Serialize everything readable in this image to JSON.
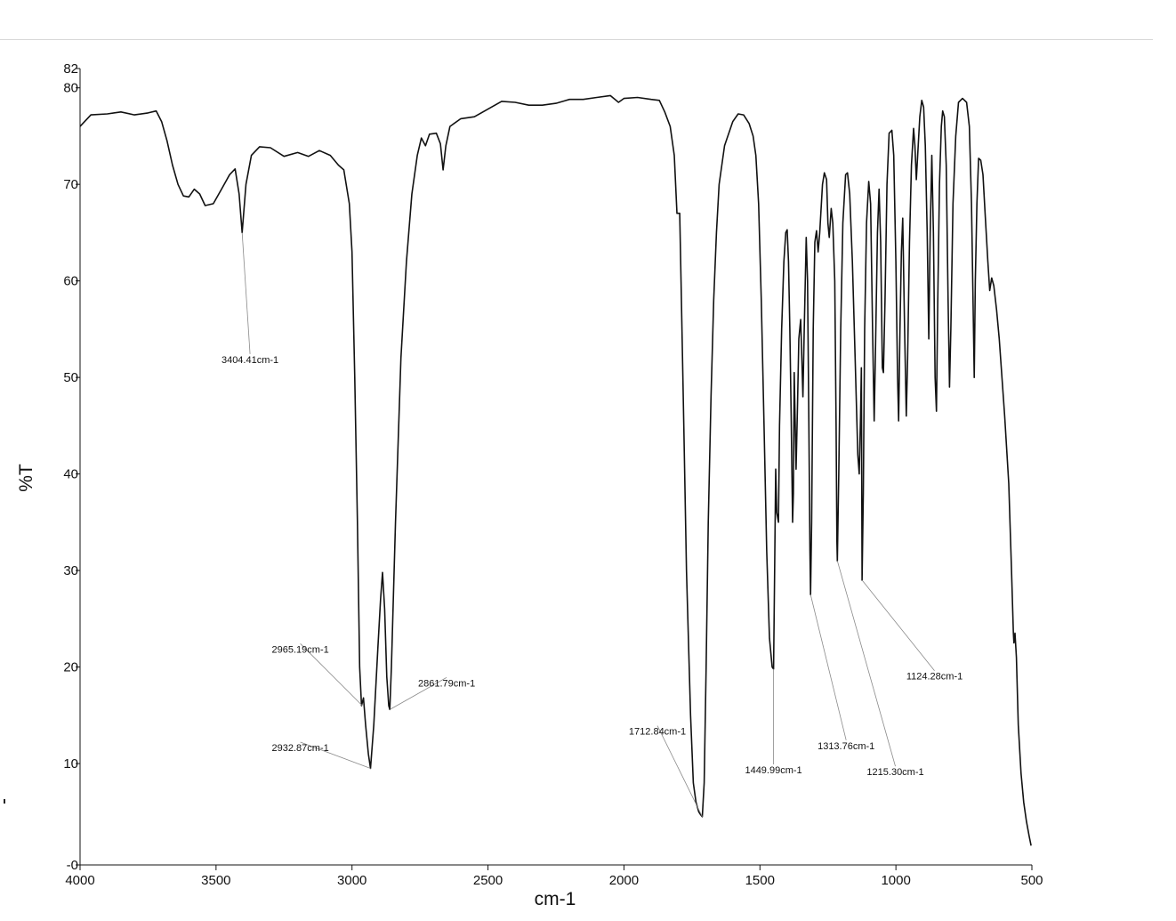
{
  "chart_data": {
    "type": "line",
    "title": "",
    "xlabel": "cm-1",
    "ylabel": "%T",
    "xlim": [
      4000,
      500
    ],
    "ylim": [
      -0.5,
      82
    ],
    "x_reversed": true,
    "grid": false,
    "x_ticks": [
      {
        "value": 4000,
        "label": "4000"
      },
      {
        "value": 3500,
        "label": "3500"
      },
      {
        "value": 3000,
        "label": "3000"
      },
      {
        "value": 2500,
        "label": "2500"
      },
      {
        "value": 2000,
        "label": "2000"
      },
      {
        "value": 1500,
        "label": "1500"
      },
      {
        "value": 1000,
        "label": "1000"
      },
      {
        "value": 500,
        "label": "500"
      }
    ],
    "y_ticks": [
      {
        "value": -0.5,
        "label": "-0"
      },
      {
        "value": 10,
        "label": "10"
      },
      {
        "value": 20,
        "label": "20"
      },
      {
        "value": 30,
        "label": "30"
      },
      {
        "value": 40,
        "label": "40"
      },
      {
        "value": 50,
        "label": "50"
      },
      {
        "value": 60,
        "label": "60"
      },
      {
        "value": 70,
        "label": "70"
      },
      {
        "value": 80,
        "label": "80"
      },
      {
        "value": 82,
        "label": "82"
      }
    ],
    "series": [
      {
        "color": "#111111",
        "points": [
          [
            4000,
            76
          ],
          [
            3960,
            77.2
          ],
          [
            3900,
            77.3
          ],
          [
            3850,
            77.5
          ],
          [
            3800,
            77.2
          ],
          [
            3750,
            77.4
          ],
          [
            3720,
            77.6
          ],
          [
            3700,
            76.5
          ],
          [
            3680,
            74.5
          ],
          [
            3660,
            72
          ],
          [
            3640,
            70
          ],
          [
            3620,
            68.8
          ],
          [
            3600,
            68.7
          ],
          [
            3580,
            69.5
          ],
          [
            3560,
            69
          ],
          [
            3540,
            67.8
          ],
          [
            3510,
            68
          ],
          [
            3480,
            69.5
          ],
          [
            3450,
            71
          ],
          [
            3430,
            71.6
          ],
          [
            3415,
            69
          ],
          [
            3404,
            65
          ],
          [
            3390,
            70
          ],
          [
            3370,
            73
          ],
          [
            3340,
            73.9
          ],
          [
            3300,
            73.8
          ],
          [
            3250,
            72.9
          ],
          [
            3200,
            73.3
          ],
          [
            3160,
            72.9
          ],
          [
            3120,
            73.5
          ],
          [
            3080,
            73
          ],
          [
            3050,
            72
          ],
          [
            3030,
            71.5
          ],
          [
            3010,
            68
          ],
          [
            3000,
            63
          ],
          [
            2990,
            50
          ],
          [
            2980,
            35
          ],
          [
            2972,
            20
          ],
          [
            2965,
            16
          ],
          [
            2958,
            16.8
          ],
          [
            2950,
            14
          ],
          [
            2940,
            11
          ],
          [
            2932,
            9.5
          ],
          [
            2920,
            14
          ],
          [
            2905,
            22
          ],
          [
            2895,
            27
          ],
          [
            2888,
            29.8
          ],
          [
            2880,
            26
          ],
          [
            2872,
            19
          ],
          [
            2865,
            16
          ],
          [
            2861,
            15.6
          ],
          [
            2855,
            20
          ],
          [
            2840,
            35
          ],
          [
            2820,
            52
          ],
          [
            2800,
            62
          ],
          [
            2780,
            69
          ],
          [
            2760,
            73
          ],
          [
            2745,
            74.8
          ],
          [
            2730,
            74
          ],
          [
            2715,
            75.2
          ],
          [
            2690,
            75.3
          ],
          [
            2675,
            74.2
          ],
          [
            2665,
            71.5
          ],
          [
            2655,
            74
          ],
          [
            2640,
            76
          ],
          [
            2600,
            76.8
          ],
          [
            2550,
            77
          ],
          [
            2500,
            77.8
          ],
          [
            2450,
            78.6
          ],
          [
            2400,
            78.5
          ],
          [
            2350,
            78.2
          ],
          [
            2300,
            78.2
          ],
          [
            2250,
            78.4
          ],
          [
            2200,
            78.8
          ],
          [
            2150,
            78.8
          ],
          [
            2100,
            79
          ],
          [
            2050,
            79.2
          ],
          [
            2020,
            78.5
          ],
          [
            2000,
            78.9
          ],
          [
            1950,
            79
          ],
          [
            1900,
            78.8
          ],
          [
            1870,
            78.7
          ],
          [
            1850,
            77.5
          ],
          [
            1830,
            76
          ],
          [
            1815,
            73
          ],
          [
            1805,
            67
          ],
          [
            1795,
            67
          ],
          [
            1790,
            60
          ],
          [
            1780,
            45
          ],
          [
            1770,
            30
          ],
          [
            1755,
            15
          ],
          [
            1745,
            8
          ],
          [
            1735,
            6
          ],
          [
            1725,
            5
          ],
          [
            1718,
            4.7
          ],
          [
            1712,
            4.5
          ],
          [
            1705,
            8
          ],
          [
            1698,
            20
          ],
          [
            1690,
            35
          ],
          [
            1680,
            48
          ],
          [
            1670,
            58
          ],
          [
            1660,
            65
          ],
          [
            1650,
            70
          ],
          [
            1630,
            74
          ],
          [
            1600,
            76.5
          ],
          [
            1580,
            77.3
          ],
          [
            1560,
            77.2
          ],
          [
            1540,
            76.3
          ],
          [
            1525,
            75
          ],
          [
            1515,
            73
          ],
          [
            1505,
            68
          ],
          [
            1495,
            58
          ],
          [
            1485,
            45
          ],
          [
            1475,
            32
          ],
          [
            1465,
            23
          ],
          [
            1455,
            20
          ],
          [
            1450,
            19.8
          ],
          [
            1446,
            30
          ],
          [
            1442,
            40.5
          ],
          [
            1438,
            36
          ],
          [
            1432,
            35
          ],
          [
            1428,
            45
          ],
          [
            1420,
            55
          ],
          [
            1412,
            62
          ],
          [
            1405,
            65
          ],
          [
            1400,
            65.3
          ],
          [
            1395,
            62
          ],
          [
            1390,
            55
          ],
          [
            1385,
            46
          ],
          [
            1380,
            35
          ],
          [
            1377,
            38
          ],
          [
            1374,
            50.5
          ],
          [
            1370,
            45
          ],
          [
            1367,
            40.5
          ],
          [
            1362,
            47
          ],
          [
            1357,
            54
          ],
          [
            1350,
            56
          ],
          [
            1342,
            48
          ],
          [
            1337,
            55
          ],
          [
            1330,
            64.5
          ],
          [
            1325,
            60
          ],
          [
            1320,
            45
          ],
          [
            1316,
            32
          ],
          [
            1313.8,
            27.5
          ],
          [
            1310,
            35
          ],
          [
            1304,
            55
          ],
          [
            1298,
            64
          ],
          [
            1292,
            65.2
          ],
          [
            1286,
            63
          ],
          [
            1280,
            65
          ],
          [
            1270,
            70
          ],
          [
            1263,
            71.2
          ],
          [
            1255,
            70.5
          ],
          [
            1250,
            66
          ],
          [
            1245,
            64.5
          ],
          [
            1238,
            67.5
          ],
          [
            1232,
            66
          ],
          [
            1225,
            60
          ],
          [
            1220,
            45
          ],
          [
            1217,
            33
          ],
          [
            1215.3,
            31
          ],
          [
            1210,
            40
          ],
          [
            1203,
            55
          ],
          [
            1195,
            66
          ],
          [
            1185,
            71
          ],
          [
            1178,
            71.2
          ],
          [
            1170,
            69
          ],
          [
            1160,
            62
          ],
          [
            1150,
            52
          ],
          [
            1140,
            42
          ],
          [
            1135,
            40
          ],
          [
            1130,
            46
          ],
          [
            1127,
            51
          ],
          [
            1124.3,
            29
          ],
          [
            1120,
            38
          ],
          [
            1115,
            55
          ],
          [
            1108,
            66
          ],
          [
            1100,
            70.3
          ],
          [
            1093,
            68
          ],
          [
            1086,
            55
          ],
          [
            1080,
            45.5
          ],
          [
            1075,
            53
          ],
          [
            1068,
            65
          ],
          [
            1062,
            69.5
          ],
          [
            1056,
            64
          ],
          [
            1050,
            51
          ],
          [
            1046,
            50.5
          ],
          [
            1040,
            58
          ],
          [
            1033,
            70
          ],
          [
            1025,
            75.3
          ],
          [
            1015,
            75.6
          ],
          [
            1008,
            73
          ],
          [
            1000,
            62
          ],
          [
            994,
            50
          ],
          [
            990,
            45.5
          ],
          [
            985,
            55
          ],
          [
            980,
            63
          ],
          [
            975,
            66.5
          ],
          [
            968,
            55
          ],
          [
            962,
            46
          ],
          [
            957,
            52
          ],
          [
            950,
            64
          ],
          [
            943,
            72
          ],
          [
            935,
            75.8
          ],
          [
            930,
            74
          ],
          [
            925,
            70.5
          ],
          [
            918,
            74
          ],
          [
            912,
            77
          ],
          [
            905,
            78.7
          ],
          [
            898,
            78
          ],
          [
            892,
            74
          ],
          [
            885,
            65
          ],
          [
            879,
            54
          ],
          [
            874,
            65
          ],
          [
            868,
            73
          ],
          [
            862,
            65
          ],
          [
            856,
            50
          ],
          [
            851,
            46.5
          ],
          [
            846,
            58
          ],
          [
            840,
            70
          ],
          [
            833,
            76
          ],
          [
            828,
            77.6
          ],
          [
            822,
            77
          ],
          [
            815,
            72
          ],
          [
            808,
            58
          ],
          [
            803,
            49
          ],
          [
            798,
            55
          ],
          [
            790,
            68
          ],
          [
            780,
            75
          ],
          [
            770,
            78.5
          ],
          [
            755,
            78.9
          ],
          [
            740,
            78.5
          ],
          [
            730,
            76
          ],
          [
            722,
            68
          ],
          [
            716,
            57
          ],
          [
            712,
            50
          ],
          [
            708,
            60
          ],
          [
            702,
            68
          ],
          [
            696,
            72.7
          ],
          [
            688,
            72.5
          ],
          [
            680,
            71
          ],
          [
            672,
            67
          ],
          [
            662,
            62
          ],
          [
            655,
            59
          ],
          [
            648,
            60.3
          ],
          [
            640,
            59.5
          ],
          [
            630,
            57
          ],
          [
            620,
            54
          ],
          [
            600,
            46
          ],
          [
            585,
            39
          ],
          [
            575,
            30
          ],
          [
            568,
            23.5
          ],
          [
            566,
            22.5
          ],
          [
            562,
            23.5
          ],
          [
            557,
            21
          ],
          [
            550,
            14
          ],
          [
            540,
            9
          ],
          [
            530,
            6
          ],
          [
            520,
            4
          ],
          [
            510,
            2.5
          ],
          [
            503,
            1.5
          ]
        ]
      }
    ],
    "annotations": [
      {
        "label": "3404.41cm-1",
        "peak": [
          3404,
          65
        ],
        "text_at": [
          3375,
          51.5
        ]
      },
      {
        "label": "2965.19cm-1",
        "peak": [
          2962,
          16
        ],
        "text_at": [
          3190,
          21.5
        ]
      },
      {
        "label": "2932.87cm-1",
        "peak": [
          2932,
          9.5
        ],
        "text_at": [
          3190,
          11.3
        ]
      },
      {
        "label": "2861.79cm-1",
        "peak": [
          2861,
          15.6
        ],
        "text_at": [
          2652,
          18
        ]
      },
      {
        "label": "1712.84cm-1",
        "peak": [
          1712,
          4.5
        ],
        "text_at": [
          1877,
          13
        ]
      },
      {
        "label": "1449.99cm-1",
        "peak": [
          1450,
          19.8
        ],
        "text_at": [
          1450,
          9
        ]
      },
      {
        "label": "1313.76cm-1",
        "peak": [
          1313.8,
          27.5
        ],
        "text_at": [
          1183,
          11.5
        ]
      },
      {
        "label": "1215.30cm-1",
        "peak": [
          1215.3,
          31
        ],
        "text_at": [
          1002,
          8.8
        ]
      },
      {
        "label": "1124.28cm-1",
        "peak": [
          1124.3,
          29
        ],
        "text_at": [
          858,
          18.7
        ]
      }
    ]
  }
}
